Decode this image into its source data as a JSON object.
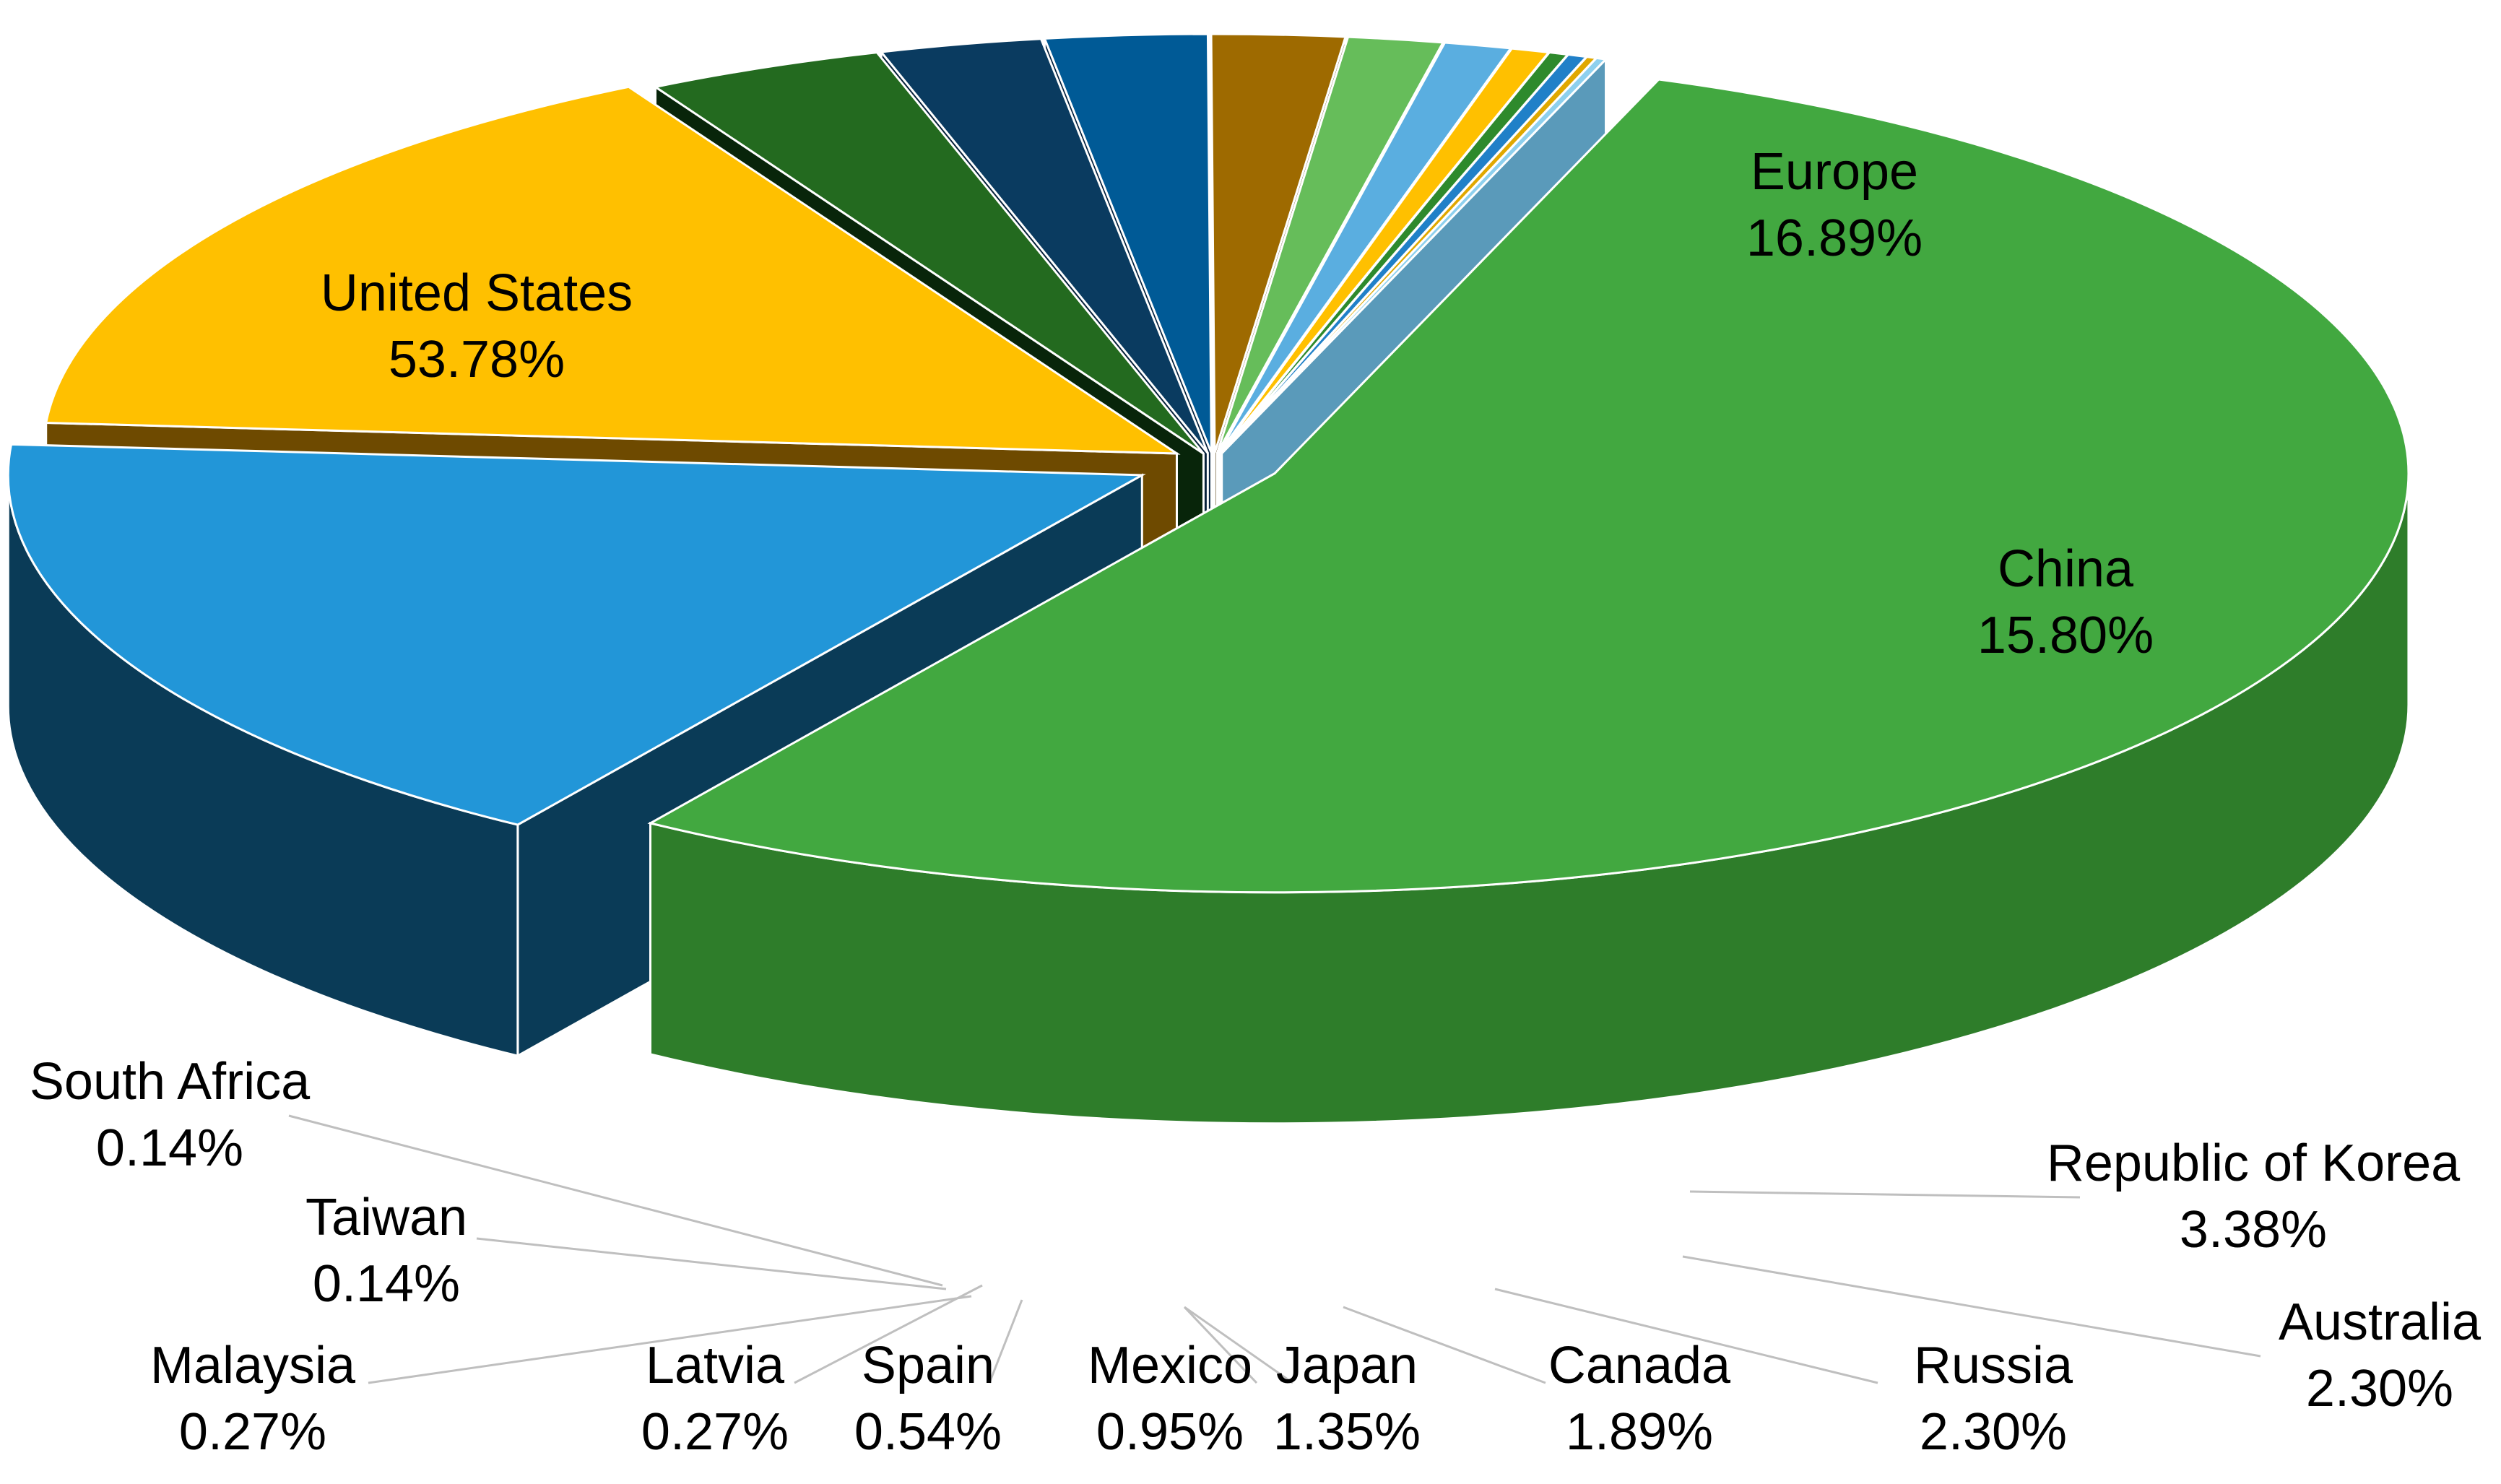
{
  "chart_data": {
    "type": "pie",
    "style": "3d-exploded",
    "legend": "none",
    "title": "",
    "slices": [
      {
        "name": "United States",
        "value": 53.78,
        "label": "53.78%",
        "color": "#42A840",
        "side": "#2E7D2A"
      },
      {
        "name": "Europe",
        "value": 16.89,
        "label": "16.89%",
        "color": "#2296D8",
        "side": "#0A3B57"
      },
      {
        "name": "China",
        "value": 15.8,
        "label": "15.80%",
        "color": "#FFC000",
        "side": "#6E4A00"
      },
      {
        "name": "Republic of Korea",
        "value": 3.38,
        "label": "3.38%",
        "color": "#236A1F",
        "side": "#08250A"
      },
      {
        "name": "Australia",
        "value": 2.3,
        "label": "2.30%",
        "color": "#0A3B60",
        "side": "#06203A"
      },
      {
        "name": "Russia",
        "value": 2.3,
        "label": "2.30%",
        "color": "#005A96",
        "side": "#001E3C"
      },
      {
        "name": "Canada",
        "value": 1.89,
        "label": "1.89%",
        "color": "#9E6A00",
        "side": "#4A3000"
      },
      {
        "name": "Japan",
        "value": 1.35,
        "label": "1.35%",
        "color": "#66BD5A",
        "side": "#2E5A28"
      },
      {
        "name": "Mexico",
        "value": 0.95,
        "label": "0.95%",
        "color": "#5AAEE0",
        "side": "#30607E"
      },
      {
        "name": "Spain",
        "value": 0.54,
        "label": "0.54%",
        "color": "#FFC000",
        "side": "#A37700"
      },
      {
        "name": "Latvia",
        "value": 0.27,
        "label": "0.27%",
        "color": "#2E8A2C",
        "side": "#153F14"
      },
      {
        "name": "Malaysia",
        "value": 0.27,
        "label": "0.27%",
        "color": "#2080C8",
        "side": "#0E4A78"
      },
      {
        "name": "Taiwan",
        "value": 0.14,
        "label": "0.14%",
        "color": "#E0A800",
        "side": "#8A6800"
      },
      {
        "name": "South Africa",
        "value": 0.14,
        "label": "0.14%",
        "color": "#8ED0EE",
        "side": "#5A9ABA"
      }
    ]
  }
}
